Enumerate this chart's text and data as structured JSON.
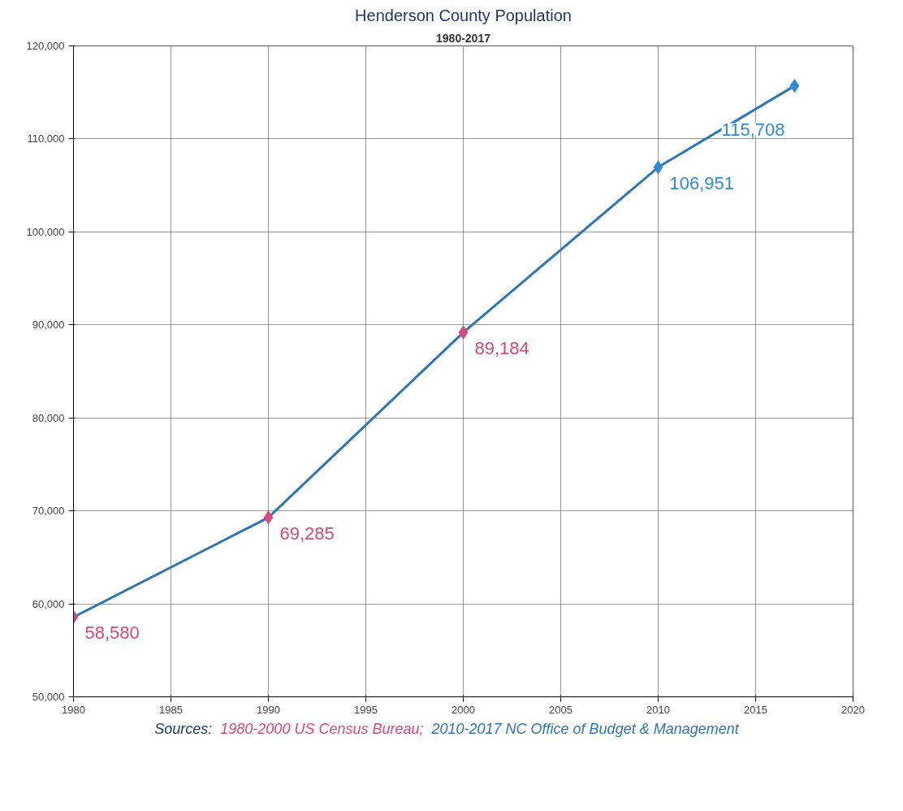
{
  "chart_data": {
    "type": "line",
    "title": "Henderson County Population",
    "subtitle": "1980-2017",
    "x": [
      1980,
      1990,
      2000,
      2010,
      2017
    ],
    "series": [
      {
        "color": "#2e75b6",
        "colors": [
          "#d9487a",
          "#d9487a",
          "#d9487a",
          "#2e8bd8",
          "#2e8bd8"
        ],
        "values": [
          58580,
          69285,
          89184,
          106951,
          115708
        ],
        "value_labels": [
          "58,580",
          "69,285",
          "89,184",
          "106,951",
          "115,708"
        ]
      }
    ],
    "xlim": [
      1980,
      2020
    ],
    "xticks": [
      1980,
      1985,
      1990,
      1995,
      2000,
      2005,
      2010,
      2015,
      2020
    ],
    "ylim": [
      50000,
      120000
    ],
    "yticks": [
      {
        "value": 50000,
        "label": "50,000"
      },
      {
        "value": 60000,
        "label": "60,000"
      },
      {
        "value": 70000,
        "label": "70,000"
      },
      {
        "value": 80000,
        "label": "80,000"
      },
      {
        "value": 90000,
        "label": "90,000"
      },
      {
        "value": 100000,
        "label": "100,000"
      },
      {
        "value": 110000,
        "label": "110,000"
      },
      {
        "value": 120000,
        "label": "120,000"
      }
    ],
    "grid": true,
    "marker": "diamond",
    "line_style": "solid",
    "annotations": [
      "Sources:",
      "1980-2000 US Census Bureau;",
      "2010-2017 NC Office of Budget & Management"
    ]
  }
}
